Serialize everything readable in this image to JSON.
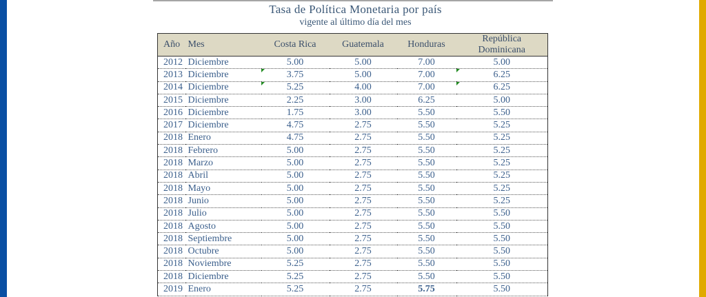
{
  "colors": {
    "left_bar": "#0a4fa3",
    "right_bar": "#e0aa00",
    "title": "#3b5877",
    "text": "#3b5f8c",
    "header": "#3a4e6a",
    "header_bg": "#ddd9c4",
    "flag": "#1f8a1f"
  },
  "title": "Tasa de Política Monetaria por país",
  "subtitle": "vigente al último día del mes",
  "headers": [
    "Año",
    "Mes",
    "Costa Rica",
    "Guatemala",
    "Honduras",
    "República Dominicana"
  ],
  "rows": [
    {
      "year": "2012",
      "mes": "Diciembre",
      "cr": "5.00",
      "gt": "5.00",
      "hn": "7.00",
      "rd": "5.00"
    },
    {
      "year": "2013",
      "mes": "Diciembre",
      "cr": "3.75",
      "gt": "5.00",
      "hn": "7.00",
      "rd": "6.25"
    },
    {
      "year": "2014",
      "mes": "Diciembre",
      "cr": "5.25",
      "gt": "4.00",
      "hn": "7.00",
      "rd": "6.25"
    },
    {
      "year": "2015",
      "mes": "Diciembre",
      "cr": "2.25",
      "gt": "3.00",
      "hn": "6.25",
      "rd": "5.00"
    },
    {
      "year": "2016",
      "mes": "Diciembre",
      "cr": "1.75",
      "gt": "3.00",
      "hn": "5.50",
      "rd": "5.50"
    },
    {
      "year": "2017",
      "mes": "Diciembre",
      "cr": "4.75",
      "gt": "2.75",
      "hn": "5.50",
      "rd": "5.25"
    },
    {
      "year": "2018",
      "mes": "Enero",
      "cr": "4.75",
      "gt": "2.75",
      "hn": "5.50",
      "rd": "5.25"
    },
    {
      "year": "2018",
      "mes": "Febrero",
      "cr": "5.00",
      "gt": "2.75",
      "hn": "5.50",
      "rd": "5.25"
    },
    {
      "year": "2018",
      "mes": "Marzo",
      "cr": "5.00",
      "gt": "2.75",
      "hn": "5.50",
      "rd": "5.25"
    },
    {
      "year": "2018",
      "mes": "Abril",
      "cr": "5.00",
      "gt": "2.75",
      "hn": "5.50",
      "rd": "5.25"
    },
    {
      "year": "2018",
      "mes": "Mayo",
      "cr": "5.00",
      "gt": "2.75",
      "hn": "5.50",
      "rd": "5.25"
    },
    {
      "year": "2018",
      "mes": "Junio",
      "cr": "5.00",
      "gt": "2.75",
      "hn": "5.50",
      "rd": "5.25"
    },
    {
      "year": "2018",
      "mes": "Julio",
      "cr": "5.00",
      "gt": "2.75",
      "hn": "5.50",
      "rd": "5.50"
    },
    {
      "year": "2018",
      "mes": "Agosto",
      "cr": "5.00",
      "gt": "2.75",
      "hn": "5.50",
      "rd": "5.50"
    },
    {
      "year": "2018",
      "mes": "Septiembre",
      "cr": "5.00",
      "gt": "2.75",
      "hn": "5.50",
      "rd": "5.50"
    },
    {
      "year": "2018",
      "mes": "Octubre",
      "cr": "5.00",
      "gt": "2.75",
      "hn": "5.50",
      "rd": "5.50"
    },
    {
      "year": "2018",
      "mes": "Noviembre",
      "cr": "5.25",
      "gt": "2.75",
      "hn": "5.50",
      "rd": "5.50"
    },
    {
      "year": "2018",
      "mes": "Diciembre",
      "cr": "5.25",
      "gt": "2.75",
      "hn": "5.50",
      "rd": "5.50"
    },
    {
      "year": "2019",
      "mes": "Enero",
      "cr": "5.25",
      "gt": "2.75",
      "hn": "5.75",
      "rd": "5.50",
      "bold": "hn"
    }
  ],
  "flagged_cells": [
    {
      "row": 1,
      "col": "cr"
    },
    {
      "row": 2,
      "col": "cr"
    },
    {
      "row": 1,
      "col": "rd"
    },
    {
      "row": 2,
      "col": "rd"
    }
  ]
}
